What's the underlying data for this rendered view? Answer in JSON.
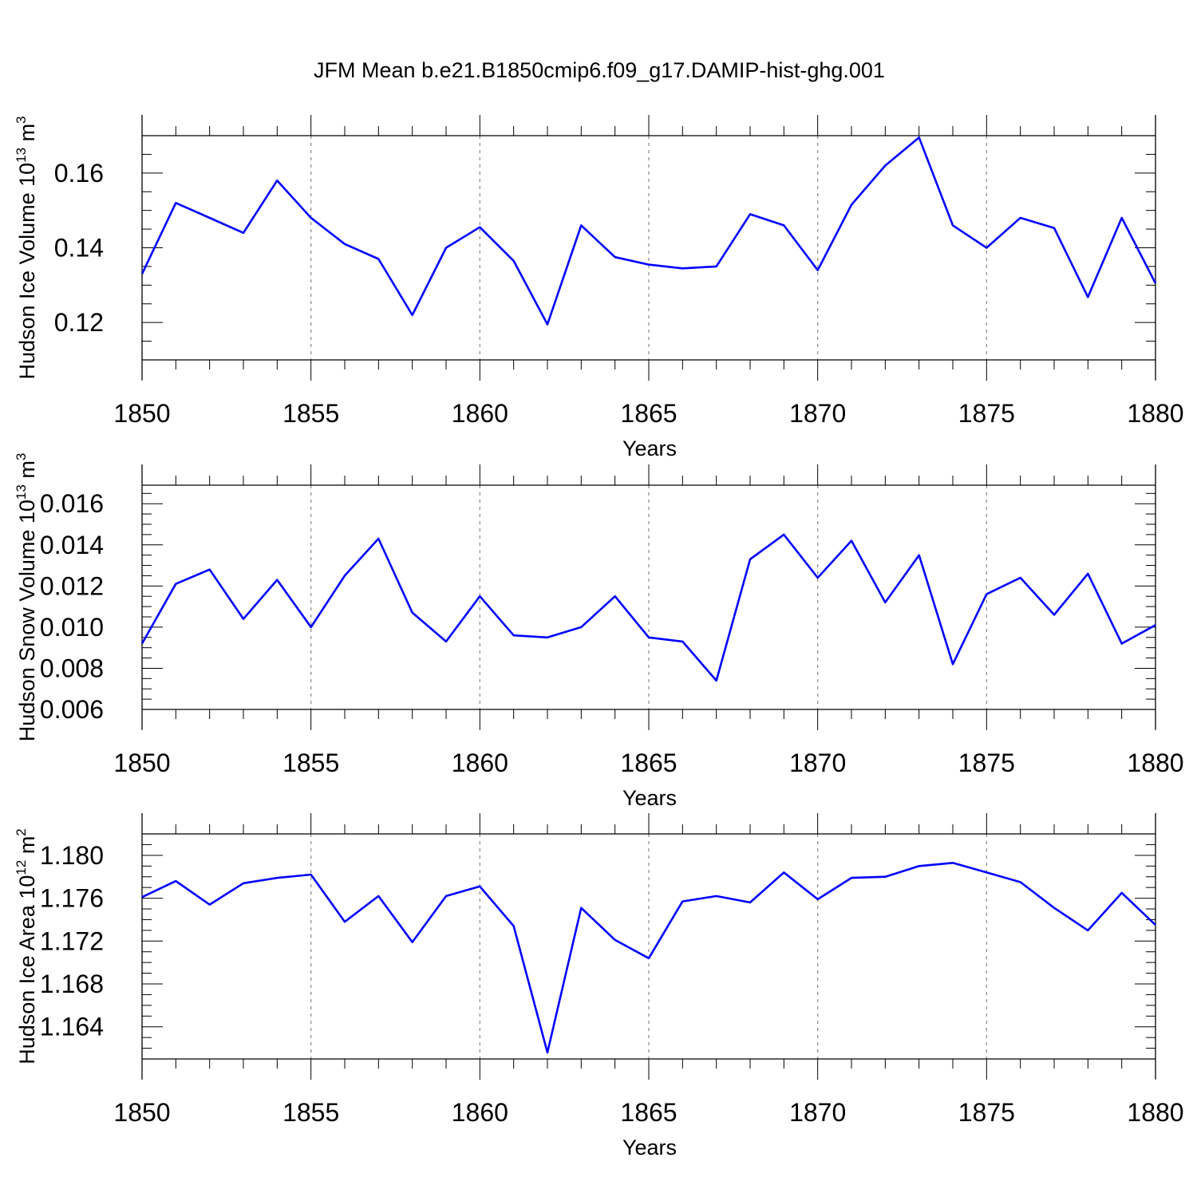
{
  "title": "JFM Mean b.e21.B1850cmip6.f09_g17.DAMIP-hist-ghg.001",
  "colors": {
    "line": "#0000ff",
    "grid": "#888888",
    "axis": "#000000"
  },
  "chart_data": [
    {
      "type": "line",
      "ylabel": {
        "prefix": "Hudson Ice Volume 10",
        "exponent": "13",
        "unit": " m",
        "unit_exponent": "3"
      },
      "xlabel": "Years",
      "xlim": [
        1850,
        1880
      ],
      "ylim": [
        0.11,
        0.17
      ],
      "x_ticks": [
        "1850",
        "1855",
        "1860",
        "1865",
        "1870",
        "1875",
        "1880"
      ],
      "y_ticks": [
        "0.12",
        "0.14",
        "0.16"
      ],
      "y_tick_values": [
        0.12,
        0.14,
        0.16
      ],
      "y_minor_step": 0.005,
      "x": [
        1850,
        1851,
        1852,
        1853,
        1854,
        1855,
        1856,
        1857,
        1858,
        1859,
        1860,
        1861,
        1862,
        1863,
        1864,
        1865,
        1866,
        1867,
        1868,
        1869,
        1870,
        1871,
        1872,
        1873,
        1874,
        1875,
        1876,
        1877,
        1878,
        1879,
        1880
      ],
      "values": [
        0.133,
        0.152,
        0.148,
        0.144,
        0.158,
        0.148,
        0.141,
        0.137,
        0.122,
        0.14,
        0.1455,
        0.1365,
        0.1195,
        0.146,
        0.1375,
        0.1355,
        0.1345,
        0.135,
        0.149,
        0.146,
        0.134,
        0.1515,
        0.162,
        0.1695,
        0.146,
        0.14,
        0.148,
        0.1453,
        0.1268,
        0.148,
        0.1305
      ]
    },
    {
      "type": "line",
      "ylabel": {
        "prefix": "Hudson Snow Volume 10",
        "exponent": "13",
        "unit": " m",
        "unit_exponent": "3"
      },
      "xlabel": "Years",
      "xlim": [
        1850,
        1880
      ],
      "ylim": [
        0.006,
        0.0169
      ],
      "x_ticks": [
        "1850",
        "1855",
        "1860",
        "1865",
        "1870",
        "1875",
        "1880"
      ],
      "y_ticks": [
        "0.006",
        "0.008",
        "0.010",
        "0.012",
        "0.014",
        "0.016"
      ],
      "y_tick_values": [
        0.006,
        0.008,
        0.01,
        0.012,
        0.014,
        0.016
      ],
      "y_minor_step": 0.0005,
      "x": [
        1850,
        1851,
        1852,
        1853,
        1854,
        1855,
        1856,
        1857,
        1858,
        1859,
        1860,
        1861,
        1862,
        1863,
        1864,
        1865,
        1866,
        1867,
        1868,
        1869,
        1870,
        1871,
        1872,
        1873,
        1874,
        1875,
        1876,
        1877,
        1878,
        1879,
        1880
      ],
      "values": [
        0.0092,
        0.0121,
        0.0128,
        0.0104,
        0.0123,
        0.01,
        0.0125,
        0.0143,
        0.0107,
        0.0093,
        0.0115,
        0.0096,
        0.0095,
        0.01,
        0.0115,
        0.0095,
        0.0093,
        0.0074,
        0.0133,
        0.0145,
        0.0124,
        0.0142,
        0.0112,
        0.0135,
        0.0082,
        0.0116,
        0.0124,
        0.0106,
        0.0126,
        0.0092,
        0.0101
      ]
    },
    {
      "type": "line",
      "ylabel": {
        "prefix": "Hudson Ice Area 10",
        "exponent": "12",
        "unit": " m",
        "unit_exponent": "2"
      },
      "xlabel": "Years",
      "xlim": [
        1850,
        1880
      ],
      "ylim": [
        1.161,
        1.182
      ],
      "x_ticks": [
        "1850",
        "1855",
        "1860",
        "1865",
        "1870",
        "1875",
        "1880"
      ],
      "y_ticks": [
        "1.164",
        "1.168",
        "1.172",
        "1.176",
        "1.180"
      ],
      "y_tick_values": [
        1.164,
        1.168,
        1.172,
        1.176,
        1.18
      ],
      "y_minor_step": 0.001,
      "x": [
        1850,
        1851,
        1852,
        1853,
        1854,
        1855,
        1856,
        1857,
        1858,
        1859,
        1860,
        1861,
        1862,
        1863,
        1864,
        1865,
        1866,
        1867,
        1868,
        1869,
        1870,
        1871,
        1872,
        1873,
        1874,
        1875,
        1876,
        1877,
        1878,
        1879,
        1880
      ],
      "values": [
        1.1761,
        1.1776,
        1.1754,
        1.1774,
        1.1779,
        1.1782,
        1.1738,
        1.1762,
        1.1719,
        1.1762,
        1.1771,
        1.1734,
        1.1616,
        1.1751,
        1.1721,
        1.1704,
        1.1757,
        1.1762,
        1.1756,
        1.1784,
        1.1759,
        1.1779,
        1.178,
        1.179,
        1.1793,
        1.1784,
        1.1775,
        1.1751,
        1.173,
        1.1765,
        1.1735
      ]
    }
  ]
}
